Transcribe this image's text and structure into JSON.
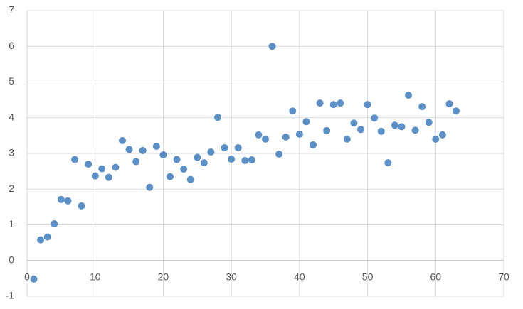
{
  "chart_data": {
    "type": "scatter",
    "x": [
      1,
      2,
      3,
      4,
      5,
      6,
      7,
      8,
      9,
      10,
      11,
      12,
      13,
      14,
      15,
      16,
      17,
      18,
      19,
      20,
      21,
      22,
      23,
      24,
      25,
      26,
      27,
      28,
      29,
      30,
      31,
      32,
      33,
      34,
      35,
      36,
      37,
      38,
      39,
      40,
      41,
      42,
      43,
      44,
      45,
      46,
      47,
      48,
      49,
      50,
      51,
      52,
      53,
      54,
      55,
      56,
      57,
      58,
      59,
      60,
      61,
      62,
      63
    ],
    "series": [
      {
        "color": "#5b8fc7",
        "values": [
          -0.52,
          0.58,
          0.66,
          1.03,
          1.71,
          1.67,
          2.83,
          1.53,
          2.7,
          2.37,
          2.57,
          2.33,
          2.61,
          3.36,
          3.11,
          2.77,
          3.08,
          2.05,
          3.2,
          2.96,
          2.35,
          2.83,
          2.56,
          2.27,
          2.89,
          2.74,
          3.04,
          4.01,
          3.16,
          2.84,
          3.16,
          2.8,
          2.82,
          3.52,
          3.4,
          6.0,
          2.98,
          3.46,
          4.19,
          3.54,
          3.89,
          3.24,
          4.41,
          3.64,
          4.37,
          4.41,
          3.4,
          3.85,
          3.67,
          4.37,
          3.99,
          3.62,
          2.74,
          3.79,
          3.75,
          4.63,
          3.65,
          4.31,
          3.87,
          3.4,
          3.52,
          4.39,
          4.19
        ]
      }
    ],
    "xlim": [
      0,
      70
    ],
    "xticks": [
      0,
      10,
      20,
      30,
      40,
      50,
      60,
      70
    ],
    "ylim": [
      -1,
      7
    ],
    "yticks": [
      -1,
      0,
      1,
      2,
      3,
      4,
      5,
      6,
      7
    ],
    "grid": true
  }
}
